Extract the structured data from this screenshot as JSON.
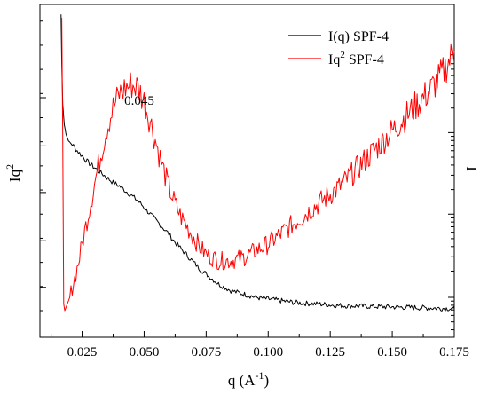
{
  "chart_data": {
    "type": "line",
    "title": "",
    "xlabel": {
      "base": "q (A",
      "sup": "-1",
      "tail": ")"
    },
    "ylabel_left": {
      "base": "Iq",
      "sup": "2"
    },
    "ylabel_right": "I",
    "xlim": [
      0.008,
      0.175
    ],
    "x_ticks": [
      0.025,
      0.05,
      0.075,
      0.1,
      0.125,
      0.15,
      0.175
    ],
    "x_tick_labels": [
      "0.025",
      "0.050",
      "0.075",
      "0.100",
      "0.125",
      "0.150",
      "0.175"
    ],
    "left_axis": {
      "ylim": [
        0,
        1
      ],
      "tick_labels_shown": false
    },
    "right_axis": {
      "scale": "log",
      "tick_labels_shown": false
    },
    "legend_position": "top-right",
    "annotation": {
      "text": "0.045",
      "x": 0.045
    },
    "series": [
      {
        "name": "I(q) SPF-4",
        "name_parts": {
          "base": "I(q)  SPF-4"
        },
        "color": "#000000",
        "axis": "right",
        "x": [
          0.0165,
          0.0168,
          0.0172,
          0.0178,
          0.0185,
          0.0195,
          0.021,
          0.0225,
          0.025,
          0.0275,
          0.03,
          0.0325,
          0.035,
          0.0375,
          0.04,
          0.0425,
          0.045,
          0.0475,
          0.05,
          0.0525,
          0.055,
          0.0575,
          0.06,
          0.0625,
          0.065,
          0.0675,
          0.07,
          0.0725,
          0.075,
          0.0775,
          0.08,
          0.0825,
          0.085,
          0.0875,
          0.09,
          0.095,
          0.1,
          0.105,
          0.11,
          0.115,
          0.12,
          0.125,
          0.13,
          0.135,
          0.14,
          0.145,
          0.15,
          0.155,
          0.16,
          0.165,
          0.17,
          0.175
        ],
        "y": [
          0.97,
          0.82,
          0.7,
          0.64,
          0.61,
          0.59,
          0.58,
          0.565,
          0.545,
          0.525,
          0.51,
          0.495,
          0.48,
          0.465,
          0.455,
          0.44,
          0.425,
          0.41,
          0.39,
          0.37,
          0.35,
          0.33,
          0.31,
          0.285,
          0.265,
          0.245,
          0.225,
          0.205,
          0.19,
          0.175,
          0.16,
          0.15,
          0.14,
          0.135,
          0.13,
          0.12,
          0.115,
          0.11,
          0.105,
          0.102,
          0.1,
          0.097,
          0.095,
          0.094,
          0.093,
          0.092,
          0.091,
          0.09,
          0.089,
          0.088,
          0.087,
          0.086
        ],
        "noise": 0.008
      },
      {
        "name": "Iq2 SPF-4",
        "name_parts": {
          "base": "Iq",
          "sup": "2",
          "tail": "  SPF-4"
        },
        "color": "#ff0000",
        "axis": "left",
        "x": [
          0.0168,
          0.0172,
          0.0176,
          0.018,
          0.0185,
          0.019,
          0.02,
          0.021,
          0.0225,
          0.024,
          0.025,
          0.0275,
          0.03,
          0.0325,
          0.035,
          0.0375,
          0.04,
          0.0425,
          0.045,
          0.0475,
          0.05,
          0.0525,
          0.055,
          0.0575,
          0.06,
          0.0625,
          0.065,
          0.0675,
          0.07,
          0.0725,
          0.075,
          0.0775,
          0.08,
          0.085,
          0.09,
          0.095,
          0.1,
          0.105,
          0.11,
          0.115,
          0.12,
          0.125,
          0.13,
          0.135,
          0.14,
          0.145,
          0.15,
          0.155,
          0.16,
          0.165,
          0.17,
          0.175
        ],
        "y": [
          0.96,
          0.6,
          0.1,
          0.08,
          0.09,
          0.1,
          0.12,
          0.15,
          0.19,
          0.24,
          0.28,
          0.37,
          0.46,
          0.55,
          0.63,
          0.69,
          0.73,
          0.75,
          0.76,
          0.75,
          0.71,
          0.65,
          0.58,
          0.51,
          0.45,
          0.4,
          0.36,
          0.33,
          0.3,
          0.27,
          0.25,
          0.24,
          0.23,
          0.23,
          0.24,
          0.26,
          0.28,
          0.31,
          0.34,
          0.37,
          0.4,
          0.43,
          0.46,
          0.5,
          0.54,
          0.58,
          0.62,
          0.66,
          0.7,
          0.74,
          0.79,
          0.86
        ],
        "noise": 0.03
      }
    ]
  }
}
